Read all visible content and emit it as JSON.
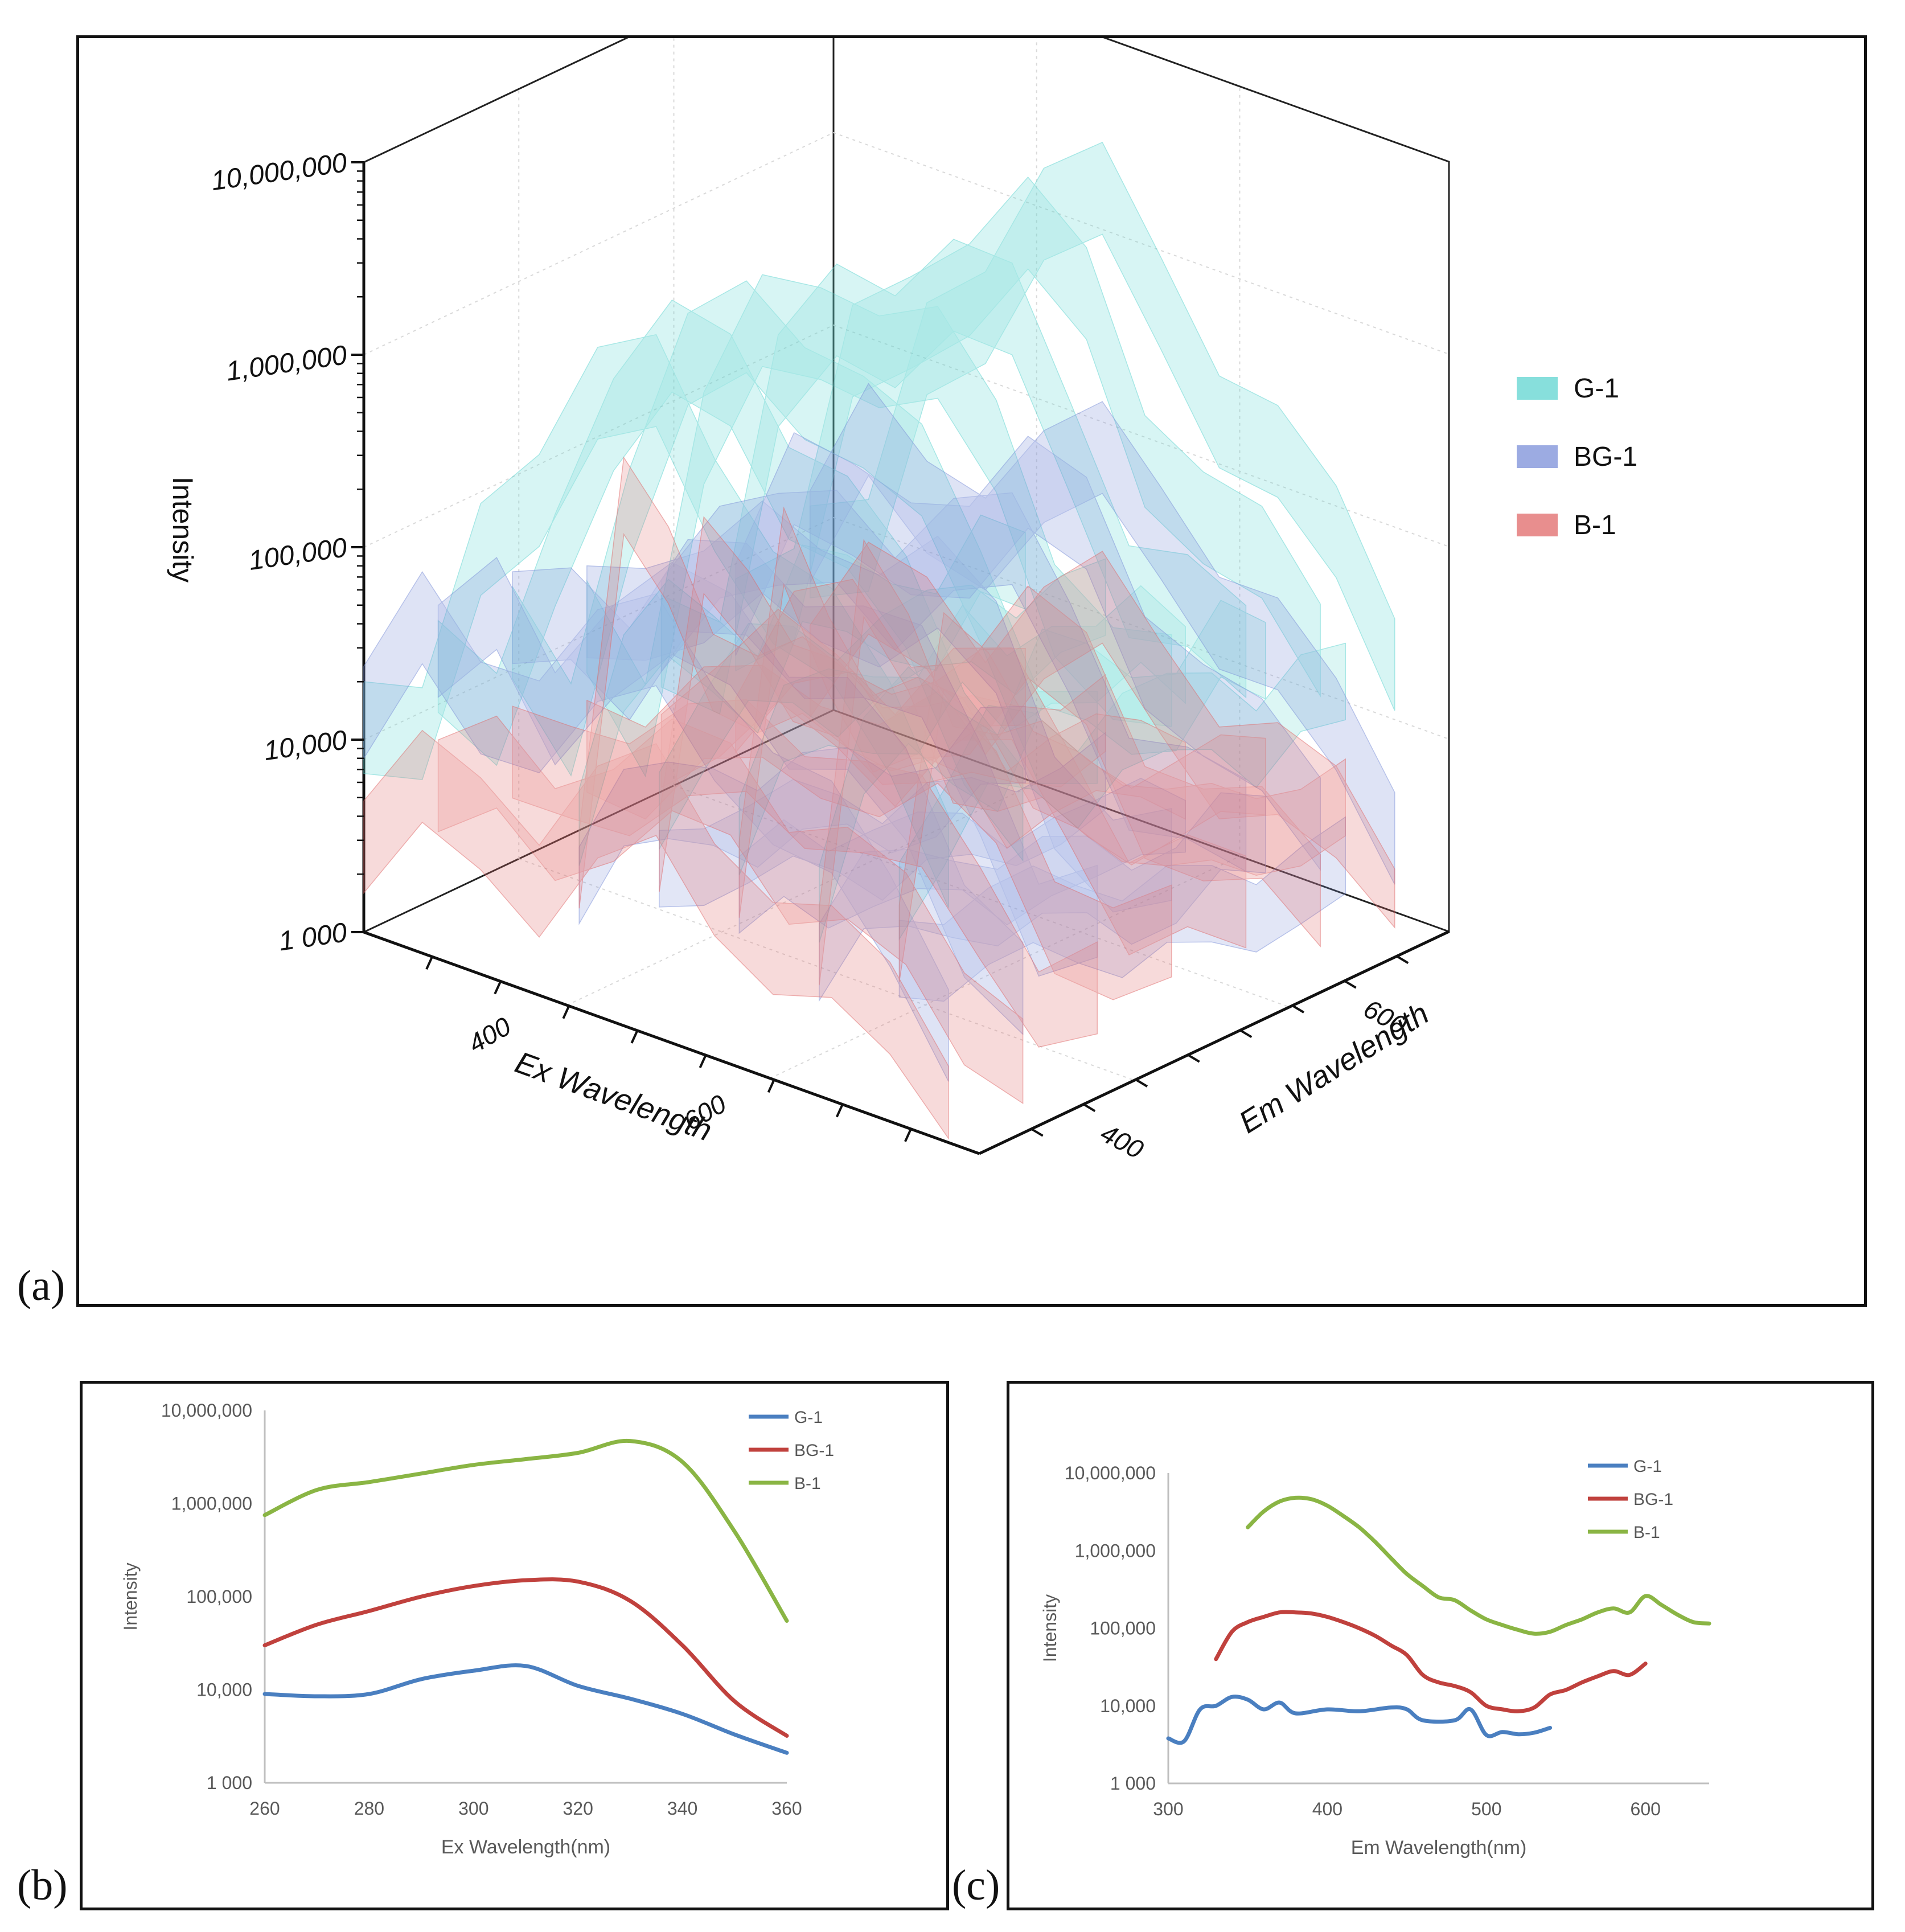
{
  "panel_labels": {
    "a": "(a)",
    "b": "(b)",
    "c": "(c)"
  },
  "chart_data": [
    {
      "id": "a",
      "type": "surface3d",
      "zlabel": "Intensity",
      "xlabel": "Ex Wavelength",
      "ylabel": "Em Wavelength",
      "z_ticks": [
        "1 000",
        "10,000",
        "100,000",
        "1,000,000",
        "10,000,000"
      ],
      "z_values": [
        1000,
        10000,
        100000,
        1000000,
        10000000
      ],
      "x_ticks": [
        "400",
        "600"
      ],
      "y_ticks": [
        "400",
        "600"
      ],
      "legend": [
        {
          "name": "G-1",
          "color": "#5fd4d0"
        },
        {
          "name": "BG-1",
          "color": "#7b8fd8"
        },
        {
          "name": "B-1",
          "color": "#e06868"
        }
      ],
      "series": [
        {
          "name": "G-1",
          "color": "#5fd4d0",
          "ex_profile": [
            25000,
            20000,
            400000,
            1500000,
            3000000,
            4000000,
            2500000,
            1000000,
            400000,
            200000,
            120000
          ],
          "em_profile": [
            20000,
            60000,
            80000,
            50000,
            30000,
            60000,
            40000,
            30000,
            20000,
            30000,
            20000
          ]
        },
        {
          "name": "BG-1",
          "color": "#7b8fd8",
          "ex_profile": [
            30000,
            80000,
            60000,
            100000,
            130000,
            180000,
            160000,
            90000,
            40000,
            20000,
            15000
          ],
          "em_profile": [
            10000,
            12000,
            9000,
            8000,
            6000,
            5000,
            4000,
            3000,
            2500,
            3000,
            2500
          ]
        },
        {
          "name": "B-1",
          "color": "#e06868",
          "ex_profile": [
            6000,
            12000,
            15000,
            14000,
            20000,
            30000,
            25000,
            15000,
            9000,
            7000,
            6000
          ],
          "em_profile": [
            12000,
            500000,
            150000,
            40000,
            30000,
            20000,
            10000,
            8000,
            7000,
            6000,
            5000
          ]
        }
      ]
    },
    {
      "id": "b",
      "type": "line",
      "xlabel": "Ex Wavelength(nm)",
      "ylabel": "Intensity",
      "yscale": "log",
      "ylim": [
        1000,
        10000000
      ],
      "xlim": [
        260,
        360
      ],
      "x_ticks": [
        260,
        280,
        300,
        320,
        340,
        360
      ],
      "x_tick_labels": [
        "260",
        "280",
        "300",
        "320",
        "340",
        "360"
      ],
      "y_tick_values": [
        1000,
        10000,
        100000,
        1000000,
        10000000
      ],
      "y_tick_labels": [
        "1 000",
        "10,000",
        "100,000",
        "1,000,000",
        "10,000,000"
      ],
      "legend": [
        "G-1",
        "BG-1",
        "B-1"
      ],
      "series": [
        {
          "name": "G-1",
          "color": "#4a7fc0",
          "x": [
            260,
            270,
            280,
            290,
            300,
            310,
            320,
            330,
            340,
            350,
            360
          ],
          "y": [
            9000,
            8500,
            9000,
            13000,
            16000,
            18000,
            11000,
            8000,
            5500,
            3300,
            2100
          ]
        },
        {
          "name": "BG-1",
          "color": "#c0413d",
          "x": [
            260,
            270,
            280,
            290,
            300,
            310,
            320,
            330,
            340,
            350,
            360
          ],
          "y": [
            30000,
            50000,
            70000,
            100000,
            130000,
            150000,
            145000,
            90000,
            30000,
            7500,
            3200
          ]
        },
        {
          "name": "B-1",
          "color": "#8ab544",
          "x": [
            260,
            270,
            280,
            290,
            300,
            310,
            320,
            330,
            340,
            350,
            360
          ],
          "y": [
            750000,
            1400000,
            1700000,
            2100000,
            2600000,
            3000000,
            3500000,
            4700000,
            2800000,
            500000,
            55000
          ]
        }
      ]
    },
    {
      "id": "c",
      "type": "line",
      "xlabel": "Em Wavelength(nm)",
      "ylabel": "Intensity",
      "yscale": "log",
      "ylim": [
        1000,
        10000000
      ],
      "xlim": [
        300,
        640
      ],
      "x_ticks": [
        300,
        400,
        500,
        600
      ],
      "x_tick_labels": [
        "300",
        "400",
        "500",
        "600"
      ],
      "y_tick_values": [
        1000,
        10000,
        100000,
        1000000,
        10000000
      ],
      "y_tick_labels": [
        "1 000",
        "10,000",
        "100,000",
        "1,000,000",
        "10,000,000"
      ],
      "legend": [
        "G-1",
        "BG-1",
        "B-1"
      ],
      "series": [
        {
          "name": "G-1",
          "color": "#4a7fc0",
          "x": [
            300,
            310,
            320,
            330,
            340,
            350,
            360,
            370,
            380,
            400,
            420,
            440,
            450,
            460,
            480,
            490,
            500,
            510,
            520,
            530,
            540
          ],
          "y": [
            3800,
            3500,
            9000,
            10000,
            13000,
            12000,
            9000,
            11000,
            8000,
            9000,
            8500,
            9500,
            9000,
            6500,
            6500,
            9000,
            4200,
            4600,
            4300,
            4500,
            5200
          ]
        },
        {
          "name": "BG-1",
          "color": "#c0413d",
          "x": [
            330,
            340,
            350,
            360,
            370,
            380,
            390,
            400,
            410,
            420,
            430,
            440,
            450,
            460,
            470,
            480,
            490,
            500,
            510,
            520,
            530,
            540,
            550,
            560,
            570,
            580,
            590,
            600
          ],
          "y": [
            40000,
            90000,
            120000,
            140000,
            160000,
            160000,
            155000,
            140000,
            120000,
            100000,
            80000,
            60000,
            45000,
            25000,
            20000,
            18000,
            15000,
            10000,
            9000,
            8500,
            9500,
            14000,
            16000,
            20000,
            24000,
            28000,
            25000,
            35000
          ]
        },
        {
          "name": "B-1",
          "color": "#8ab544",
          "x": [
            350,
            360,
            370,
            380,
            390,
            400,
            410,
            420,
            430,
            440,
            450,
            460,
            470,
            480,
            490,
            500,
            510,
            520,
            530,
            540,
            550,
            560,
            570,
            580,
            590,
            600,
            610,
            620,
            630,
            640
          ],
          "y": [
            2000000,
            3200000,
            4300000,
            4800000,
            4600000,
            3800000,
            2800000,
            2000000,
            1300000,
            800000,
            500000,
            350000,
            250000,
            230000,
            170000,
            130000,
            110000,
            95000,
            85000,
            90000,
            110000,
            130000,
            160000,
            180000,
            160000,
            260000,
            200000,
            150000,
            120000,
            115000
          ]
        }
      ]
    }
  ]
}
